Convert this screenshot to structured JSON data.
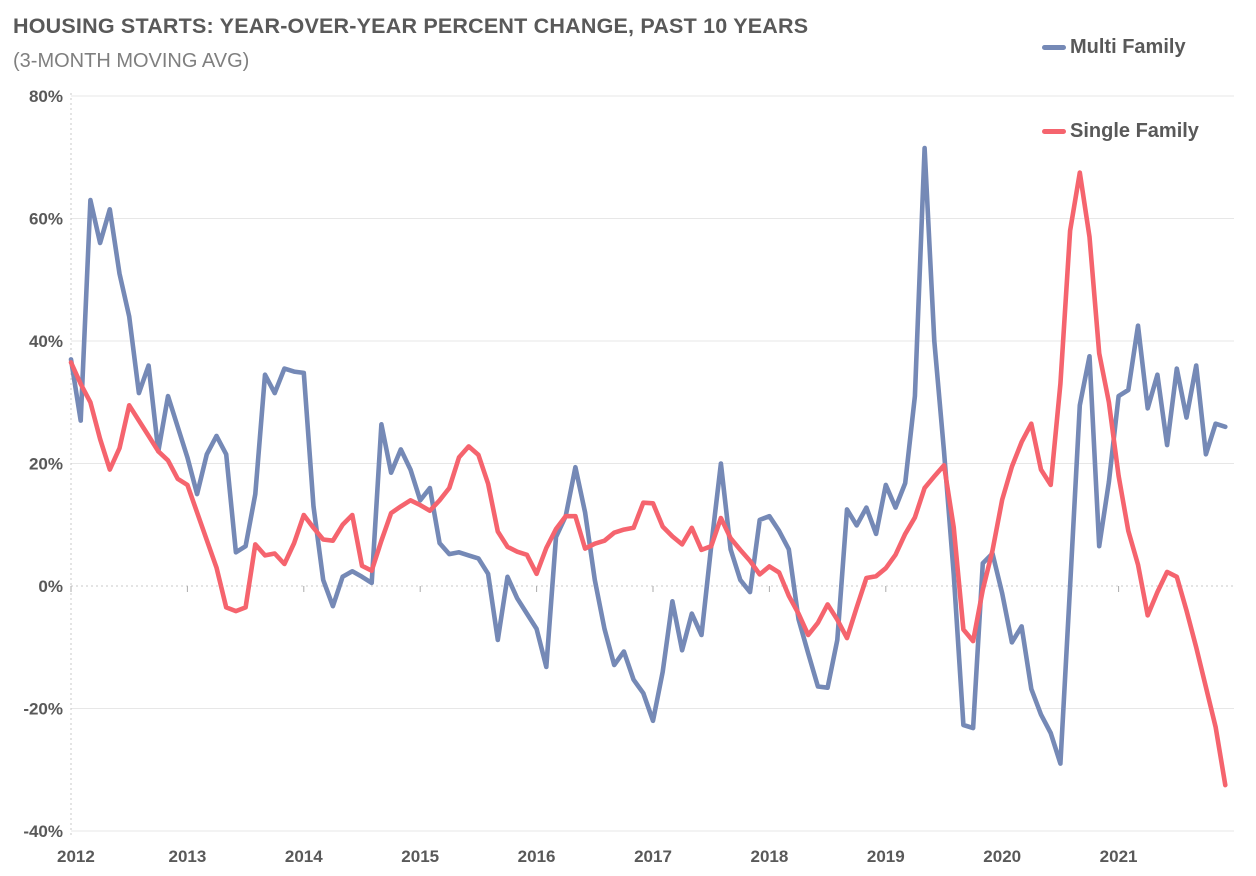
{
  "title": "HOUSING STARTS: YEAR-OVER-YEAR PERCENT CHANGE, PAST 10 YEARS",
  "subtitle": "(3-MONTH MOVING AVG)",
  "legend": [
    {
      "label": "Multi Family",
      "color": "#7589B6"
    },
    {
      "label": "Single Family",
      "color": "#F5646E"
    }
  ],
  "colors": {
    "multi_family": "#7589B6",
    "single_family": "#F5646E",
    "title_text": "#595959",
    "subtitle_text": "#7f7f7f",
    "axis_text": "#595959",
    "gridline": "#E7E7E7",
    "zero_axis": "#C9C9C9"
  },
  "chart_data": {
    "type": "line",
    "title": "HOUSING STARTS: YEAR-OVER-YEAR PERCENT CHANGE, PAST 10 YEARS (3-MONTH MOVING AVG)",
    "x_frequency": "monthly",
    "x_range": [
      "2012-01",
      "2021-12"
    ],
    "x_tick_labels": [
      "2012",
      "2013",
      "2014",
      "2015",
      "2016",
      "2017",
      "2018",
      "2019",
      "2020",
      "2021"
    ],
    "y_ticks": [
      80,
      60,
      40,
      20,
      0,
      -20,
      -40
    ],
    "y_tick_labels": [
      "80%",
      "60%",
      "40%",
      "20%",
      "0%",
      "-20%",
      "-40%"
    ],
    "ylim": [
      -40,
      80
    ],
    "grid": true,
    "legend_position": "top-right",
    "units": "percent year-over-year change",
    "series": [
      {
        "name": "Multi Family",
        "color": "#7589B6",
        "values": [
          37,
          27,
          63,
          56,
          61.5,
          51,
          44,
          31.5,
          36,
          22,
          31,
          26,
          21,
          15,
          21.5,
          24.5,
          21.5,
          5.5,
          6.5,
          15,
          34.5,
          31.5,
          35.5,
          35,
          34.8,
          13,
          1,
          -3.3,
          1.5,
          2.4,
          1.5,
          0.5,
          26.4,
          18.5,
          22.3,
          19,
          14,
          16,
          7,
          5.2,
          5.5,
          5,
          4.5,
          2,
          -8.8,
          1.5,
          -2,
          -4.5,
          -7,
          -13.2,
          8,
          11.4,
          19.4,
          12,
          1,
          -7,
          -12.9,
          -10.7,
          -15.3,
          -17.5,
          -22,
          -14,
          -2.5,
          -10.5,
          -4.5,
          -8,
          6.5,
          20,
          6,
          1,
          -1,
          10.8,
          11.4,
          9,
          6,
          -5.4,
          -11,
          -16.4,
          -16.6,
          -8.8,
          12.5,
          9.9,
          12.8,
          8.5,
          16.5,
          12.8,
          16.8,
          31,
          71.5,
          40,
          22,
          2,
          -22.7,
          -23.2,
          3.7,
          5.3,
          -1.2,
          -9.2,
          -6.6,
          -16.8,
          -21,
          -24,
          -29,
          0,
          29.5,
          37.5,
          6.5,
          17,
          31,
          32,
          42.5,
          29,
          34.5,
          23,
          35.5,
          27.5,
          36,
          21.5,
          26.5,
          26
        ]
      },
      {
        "name": "Single Family",
        "color": "#F5646E",
        "values": [
          36.5,
          33,
          30,
          24,
          19,
          22.5,
          29.5,
          27,
          24.5,
          22,
          20.5,
          17.5,
          16.5,
          12,
          7.5,
          3,
          -3.5,
          -4.1,
          -3.5,
          6.8,
          5,
          5.3,
          3.6,
          7,
          11.6,
          9.5,
          7.6,
          7.4,
          10,
          11.6,
          3.3,
          2.5,
          7.4,
          11.9,
          13,
          14,
          13.2,
          12.3,
          14,
          16,
          21,
          22.8,
          21.4,
          16.7,
          8.9,
          6.4,
          5.6,
          5.1,
          2,
          6.2,
          9.3,
          11.4,
          11.4,
          6.1,
          6.9,
          7.4,
          8.7,
          9.2,
          9.5,
          13.6,
          13.5,
          9.7,
          8.1,
          6.8,
          9.5,
          5.9,
          6.5,
          11.1,
          7.8,
          5.9,
          4.1,
          1.9,
          3.2,
          2.2,
          -1.6,
          -4.5,
          -8,
          -6,
          -3,
          -5.5,
          -8.5,
          -3.5,
          1.3,
          1.6,
          2.9,
          5.1,
          8.5,
          11.2,
          16,
          17.9,
          19.7,
          9.6,
          -7.1,
          -9,
          -0.6,
          5.8,
          14.1,
          19.5,
          23.5,
          26.5,
          19,
          16.5,
          33,
          58,
          67.5,
          57,
          38,
          30,
          18,
          9,
          3.5,
          -4.8,
          -1,
          2.3,
          1.5,
          -4,
          -10,
          -16.5,
          -23,
          -32.5
        ]
      }
    ]
  }
}
